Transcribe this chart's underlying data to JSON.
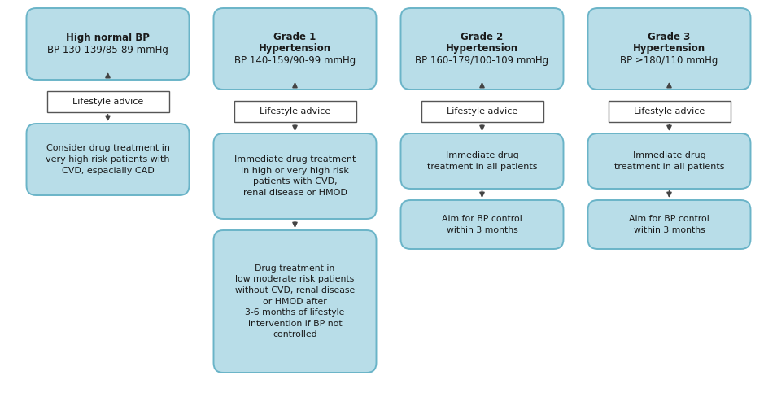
{
  "bg_color": "#ffffff",
  "light_blue": "#b8dde8",
  "border_color": "#6ab4c8",
  "text_color": "#1a1a1a",
  "arrow_color": "#444444",
  "fig_w": 9.55,
  "fig_h": 4.83,
  "dpi": 100,
  "columns": [
    {
      "id": 0,
      "header_lines": [
        "High normal BP",
        "BP 130-139/85-89 mmHg"
      ],
      "header_bold": [
        true,
        false
      ],
      "box2_lines": [
        "Consider drug treatment in",
        "very high risk patients with",
        "CVD, espacially CAD"
      ],
      "box3_lines": []
    },
    {
      "id": 1,
      "header_lines": [
        "Grade 1",
        "Hypertension",
        "BP 140-159/90-99 mmHg"
      ],
      "header_bold": [
        true,
        true,
        false
      ],
      "box2_lines": [
        "Immediate drug treatment",
        "in high or very high risk",
        "patients with CVD,",
        "renal disease or HMOD"
      ],
      "box3_lines": [
        "Drug treatment in",
        "low moderate risk patients",
        "without CVD, renal disease",
        "or HMOD after",
        "3-6 months of lifestyle",
        "intervention if BP not",
        "controlled"
      ]
    },
    {
      "id": 2,
      "header_lines": [
        "Grade 2",
        "Hypertension",
        "BP 160-179/100-109 mmHg"
      ],
      "header_bold": [
        true,
        true,
        false
      ],
      "box2_lines": [
        "Immediate drug",
        "treatment in all patients"
      ],
      "box3_lines": [
        "Aim for BP control",
        "within 3 months"
      ]
    },
    {
      "id": 3,
      "header_lines": [
        "Grade 3",
        "Hypertension",
        "BP ≥180/110 mmHg"
      ],
      "header_bold": [
        true,
        true,
        false
      ],
      "box2_lines": [
        "Immediate drug",
        "treatment in all patients"
      ],
      "box3_lines": [
        "Aim for BP control",
        "within 3 months"
      ]
    }
  ]
}
